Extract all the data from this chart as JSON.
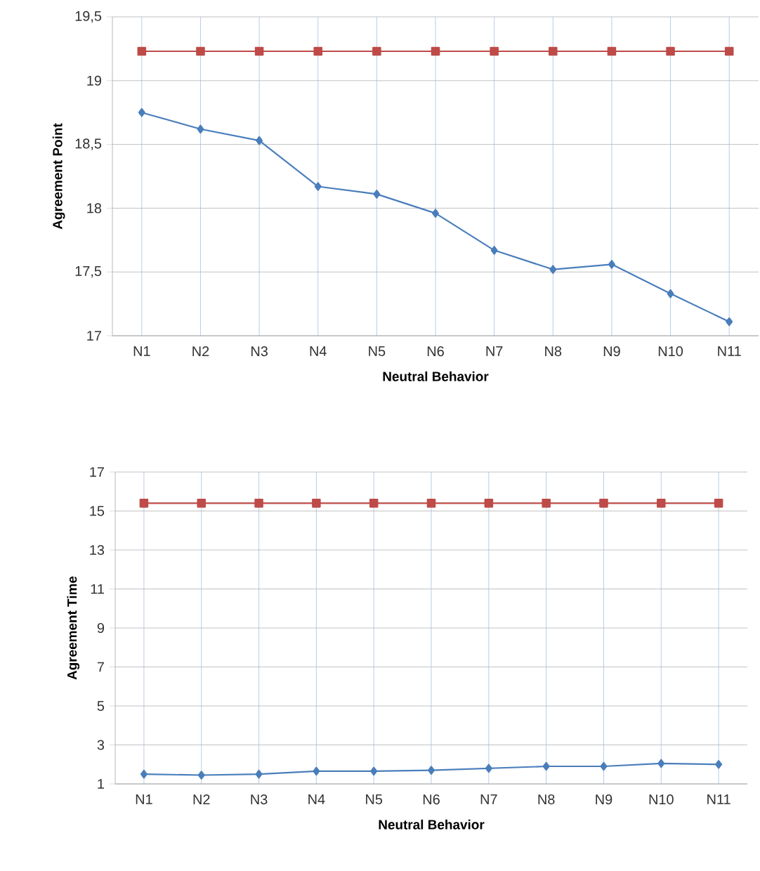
{
  "chart_data": [
    {
      "type": "line",
      "xlabel": "Neutral Behavior",
      "ylabel": "Agreement Point",
      "categories": [
        "N1",
        "N2",
        "N3",
        "N4",
        "N5",
        "N6",
        "N7",
        "N8",
        "N9",
        "N10",
        "N11"
      ],
      "series": [
        {
          "color": "#4a7ebb",
          "marker": "diamond",
          "values": [
            18.75,
            18.62,
            18.53,
            18.17,
            18.11,
            17.96,
            17.67,
            17.52,
            17.56,
            17.33,
            17.11
          ]
        },
        {
          "color": "#be4b48",
          "marker": "square",
          "values": [
            19.23,
            19.23,
            19.23,
            19.23,
            19.23,
            19.23,
            19.23,
            19.23,
            19.23,
            19.23,
            19.23
          ]
        }
      ],
      "ylim": [
        17,
        19.5
      ],
      "yticks": [
        17,
        {
          "value": 17.5,
          "label": "17,5"
        },
        18,
        {
          "value": 18.5,
          "label": "18,5"
        },
        19,
        {
          "value": 19.5,
          "label": "19,5"
        }
      ],
      "grid": true
    },
    {
      "type": "line",
      "xlabel": "Neutral Behavior",
      "ylabel": "Agreement Time",
      "categories": [
        "N1",
        "N2",
        "N3",
        "N4",
        "N5",
        "N6",
        "N7",
        "N8",
        "N9",
        "N10",
        "N11"
      ],
      "series": [
        {
          "color": "#4a7ebb",
          "marker": "diamond",
          "values": [
            1.5,
            1.45,
            1.5,
            1.65,
            1.65,
            1.7,
            1.8,
            1.9,
            1.9,
            2.05,
            2.0
          ]
        },
        {
          "color": "#be4b48",
          "marker": "square",
          "values": [
            15.4,
            15.4,
            15.4,
            15.4,
            15.4,
            15.4,
            15.4,
            15.4,
            15.4,
            15.4,
            15.4
          ]
        }
      ],
      "ylim": [
        1,
        17
      ],
      "yticks": [
        1,
        3,
        5,
        7,
        9,
        11,
        13,
        15,
        17
      ],
      "grid": true
    }
  ]
}
